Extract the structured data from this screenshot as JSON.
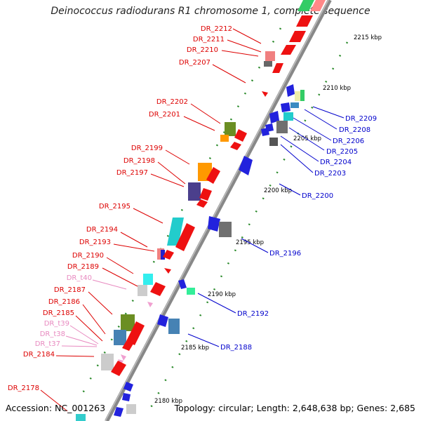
{
  "title": "Deinococcus radiodurans R1 chromosome 1, complete sequence",
  "footer": {
    "accession": "Accession: NC_001263",
    "summary": "Topology: circular; Length: 2,648,638 bp; Genes: 2,685"
  },
  "colors": {
    "forward_label": "#dd0000",
    "reverse_label": "#0000cc",
    "trna_label": "#e88ac0",
    "tick": "#2a8a2a",
    "backbone": "#808080"
  },
  "ticks_kbp": [
    "2215 kbp",
    "2210 kbp",
    "2205 kbp",
    "2200 kbp",
    "2195 kbp",
    "2190 kbp",
    "2185 kbp",
    "2180 kbp"
  ],
  "left_labels": [
    "DR_2212",
    "DR_2211",
    "DR_2210",
    "DR_2207",
    "DR_2202",
    "DR_2201",
    "DR_2199",
    "DR_2198",
    "DR_2197",
    "DR_2195",
    "DR_2194",
    "DR_2193",
    "DR_2190",
    "DR_2189",
    "DR_t40",
    "DR_2187",
    "DR_2186",
    "DR_2185",
    "DR_t39",
    "DR_t38",
    "DR_t37",
    "DR_2184",
    "DR_2178"
  ],
  "right_labels": [
    "DR_2209",
    "DR_2208",
    "DR_2206",
    "DR_2205",
    "DR_2204",
    "DR_2203",
    "DR_2200",
    "DR_2196",
    "DR_2192",
    "DR_2188"
  ]
}
